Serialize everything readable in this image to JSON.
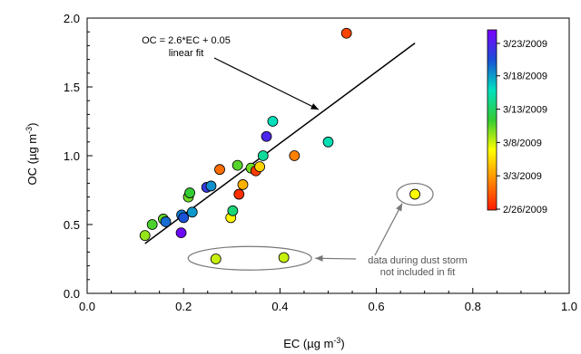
{
  "chart_data": {
    "type": "scatter",
    "title": "",
    "xlabel": "EC (µg m",
    "xlabel_sup": "-3",
    "xlabel_close": ")",
    "ylabel": "OC (µg m",
    "ylabel_sup": "-3",
    "ylabel_close": ")",
    "xlim": [
      0.0,
      1.0
    ],
    "ylim": [
      0.0,
      2.0
    ],
    "xticks": [
      "0.0",
      "0.2",
      "0.4",
      "0.6",
      "0.8",
      "1.0"
    ],
    "yticks": [
      "0.0",
      "0.5",
      "1.0",
      "1.5",
      "2.0"
    ],
    "fit": {
      "equation": "OC = 2.6*EC + 0.05",
      "label": "linear fit",
      "slope": 2.6,
      "intercept": 0.05,
      "x_range": [
        0.12,
        0.68
      ]
    },
    "points": [
      {
        "x": 0.12,
        "y": 0.42,
        "c": 0.42
      },
      {
        "x": 0.135,
        "y": 0.5,
        "c": 0.48
      },
      {
        "x": 0.158,
        "y": 0.54,
        "c": 0.46
      },
      {
        "x": 0.163,
        "y": 0.52,
        "c": 0.8
      },
      {
        "x": 0.195,
        "y": 0.44,
        "c": 0.98
      },
      {
        "x": 0.196,
        "y": 0.57,
        "c": 0.78
      },
      {
        "x": 0.2,
        "y": 0.55,
        "c": 0.83
      },
      {
        "x": 0.21,
        "y": 0.7,
        "c": 0.45
      },
      {
        "x": 0.213,
        "y": 0.73,
        "c": 0.5
      },
      {
        "x": 0.218,
        "y": 0.59,
        "c": 0.75
      },
      {
        "x": 0.248,
        "y": 0.77,
        "c": 0.88
      },
      {
        "x": 0.257,
        "y": 0.78,
        "c": 0.76
      },
      {
        "x": 0.275,
        "y": 0.9,
        "c": 0.12
      },
      {
        "x": 0.298,
        "y": 0.55,
        "c": 0.32
      },
      {
        "x": 0.302,
        "y": 0.6,
        "c": 0.58
      },
      {
        "x": 0.312,
        "y": 0.93,
        "c": 0.47
      },
      {
        "x": 0.315,
        "y": 0.72,
        "c": 0.03
      },
      {
        "x": 0.323,
        "y": 0.79,
        "c": 0.22
      },
      {
        "x": 0.34,
        "y": 0.91,
        "c": 0.45
      },
      {
        "x": 0.35,
        "y": 0.89,
        "c": 0.05
      },
      {
        "x": 0.358,
        "y": 0.92,
        "c": 0.27
      },
      {
        "x": 0.365,
        "y": 1.0,
        "c": 0.62
      },
      {
        "x": 0.372,
        "y": 1.14,
        "c": 0.92
      },
      {
        "x": 0.385,
        "y": 1.25,
        "c": 0.66
      },
      {
        "x": 0.43,
        "y": 1.0,
        "c": 0.15
      },
      {
        "x": 0.5,
        "y": 1.1,
        "c": 0.65
      },
      {
        "x": 0.538,
        "y": 1.89,
        "c": 0.06
      }
    ],
    "excluded_points": [
      {
        "x": 0.267,
        "y": 0.25,
        "c": 0.38
      },
      {
        "x": 0.408,
        "y": 0.26,
        "c": 0.38
      },
      {
        "x": 0.68,
        "y": 0.72,
        "c": 0.33
      }
    ],
    "dust_storm_note": [
      "data during dust storm",
      "not included in fit"
    ],
    "colorbar": {
      "colors": [
        "#ff1a00",
        "#ff8c00",
        "#ffff00",
        "#33cc33",
        "#00e0c0",
        "#1a4fd6",
        "#7a00ff"
      ],
      "ticks": [
        {
          "label": "3/23/2009",
          "pos": 0.925
        },
        {
          "label": "3/18/2009",
          "pos": 0.745
        },
        {
          "label": "3/13/2009",
          "pos": 0.56
        },
        {
          "label": "3/8/2009",
          "pos": 0.375
        },
        {
          "label": "3/3/2009",
          "pos": 0.19
        },
        {
          "label": "2/26/2009",
          "pos": 0.005
        }
      ]
    }
  }
}
